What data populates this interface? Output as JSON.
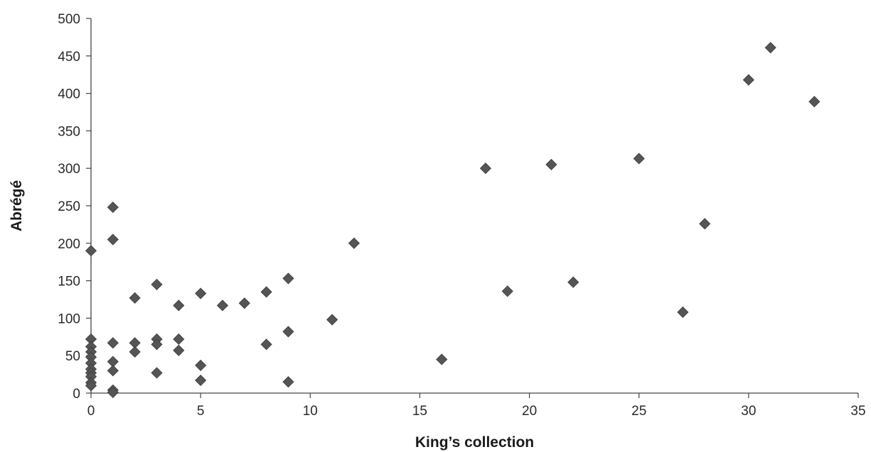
{
  "chart_data": {
    "type": "scatter",
    "title": "",
    "xlabel": "King’s collection",
    "ylabel": "Abrégé",
    "xlim": [
      0,
      35
    ],
    "ylim": [
      0,
      500
    ],
    "x_ticks": [
      0,
      5,
      10,
      15,
      20,
      25,
      30,
      35
    ],
    "y_ticks": [
      0,
      50,
      100,
      150,
      200,
      250,
      300,
      350,
      400,
      450,
      500
    ],
    "grid": false,
    "legend": "none",
    "marker": "diamond",
    "marker_color": "#555555",
    "series": [
      {
        "points": [
          {
            "x": 0,
            "y": 190
          },
          {
            "x": 0,
            "y": 72
          },
          {
            "x": 0,
            "y": 62
          },
          {
            "x": 0,
            "y": 55
          },
          {
            "x": 0,
            "y": 48
          },
          {
            "x": 0,
            "y": 40
          },
          {
            "x": 0,
            "y": 32
          },
          {
            "x": 0,
            "y": 27
          },
          {
            "x": 0,
            "y": 22
          },
          {
            "x": 0,
            "y": 14
          },
          {
            "x": 0,
            "y": 10
          },
          {
            "x": 1,
            "y": 248
          },
          {
            "x": 1,
            "y": 205
          },
          {
            "x": 1,
            "y": 67
          },
          {
            "x": 1,
            "y": 42
          },
          {
            "x": 1,
            "y": 30
          },
          {
            "x": 1,
            "y": 4
          },
          {
            "x": 1,
            "y": 1
          },
          {
            "x": 2,
            "y": 127
          },
          {
            "x": 2,
            "y": 67
          },
          {
            "x": 2,
            "y": 55
          },
          {
            "x": 3,
            "y": 145
          },
          {
            "x": 3,
            "y": 72
          },
          {
            "x": 3,
            "y": 65
          },
          {
            "x": 3,
            "y": 27
          },
          {
            "x": 4,
            "y": 117
          },
          {
            "x": 4,
            "y": 72
          },
          {
            "x": 4,
            "y": 57
          },
          {
            "x": 5,
            "y": 133
          },
          {
            "x": 5,
            "y": 37
          },
          {
            "x": 5,
            "y": 17
          },
          {
            "x": 6,
            "y": 117
          },
          {
            "x": 7,
            "y": 120
          },
          {
            "x": 8,
            "y": 135
          },
          {
            "x": 8,
            "y": 65
          },
          {
            "x": 9,
            "y": 153
          },
          {
            "x": 9,
            "y": 82
          },
          {
            "x": 9,
            "y": 15
          },
          {
            "x": 11,
            "y": 98
          },
          {
            "x": 12,
            "y": 200
          },
          {
            "x": 16,
            "y": 45
          },
          {
            "x": 18,
            "y": 300
          },
          {
            "x": 19,
            "y": 136
          },
          {
            "x": 21,
            "y": 305
          },
          {
            "x": 22,
            "y": 148
          },
          {
            "x": 25,
            "y": 313
          },
          {
            "x": 27,
            "y": 108
          },
          {
            "x": 28,
            "y": 226
          },
          {
            "x": 30,
            "y": 418
          },
          {
            "x": 31,
            "y": 461
          },
          {
            "x": 33,
            "y": 389
          }
        ]
      }
    ]
  }
}
